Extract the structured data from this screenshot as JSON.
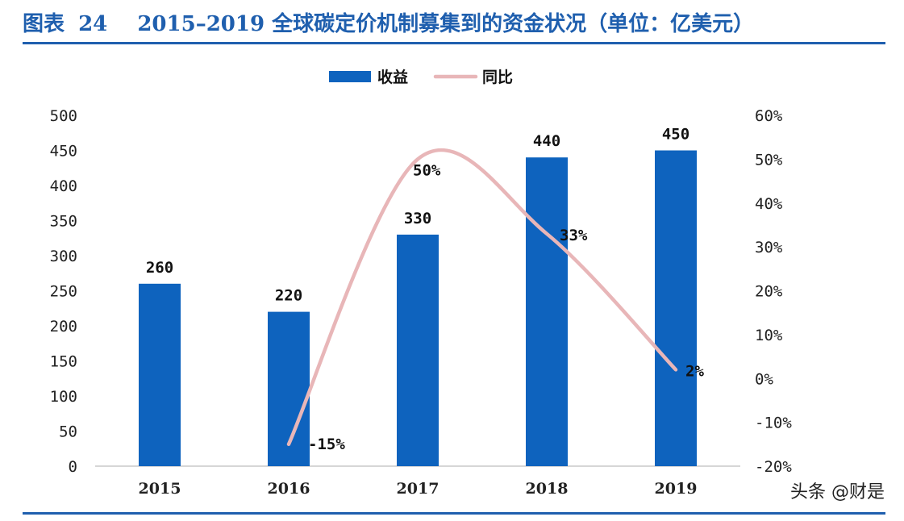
{
  "header": {
    "figure_prefix": "图表",
    "figure_number": "24",
    "title": "2015–2019 全球碳定价机制募集到的资金状况（单位：亿美元）"
  },
  "watermark": "头条 @财是",
  "colors": {
    "bar": "#0e63be",
    "line": "#e8b6b8",
    "rule": "#1f5fae"
  },
  "chart_data": {
    "type": "bar",
    "categories": [
      "2015",
      "2016",
      "2017",
      "2018",
      "2019"
    ],
    "series": [
      {
        "name": "收益",
        "type": "bar",
        "axis": "left",
        "values": [
          260,
          220,
          330,
          440,
          450
        ]
      },
      {
        "name": "同比",
        "type": "line",
        "axis": "right",
        "values": [
          null,
          -15,
          50,
          33,
          2
        ]
      }
    ],
    "bar_labels": [
      "260",
      "220",
      "330",
      "440",
      "450"
    ],
    "line_labels": [
      "",
      "-15%",
      "50%",
      "33%",
      "2%"
    ],
    "y_left": {
      "min": 0,
      "max": 500,
      "step": 50,
      "ticks": [
        "0",
        "50",
        "100",
        "150",
        "200",
        "250",
        "300",
        "350",
        "400",
        "450",
        "500"
      ]
    },
    "y_right": {
      "min": -20,
      "max": 60,
      "step": 10,
      "ticks": [
        "-20%",
        "-10%",
        "0%",
        "10%",
        "20%",
        "30%",
        "40%",
        "50%",
        "60%"
      ]
    },
    "legend_position": "top-center",
    "grid": false
  }
}
